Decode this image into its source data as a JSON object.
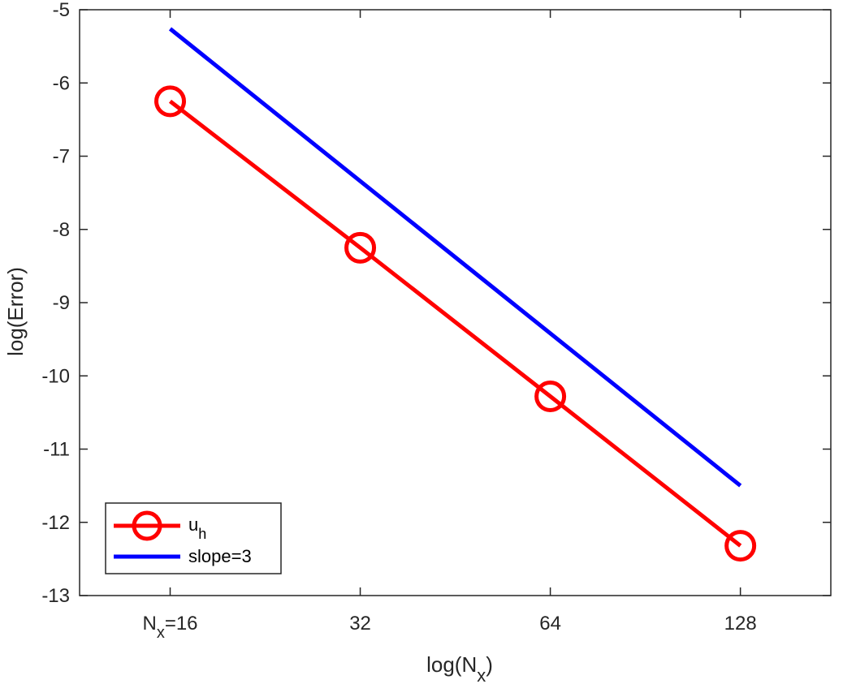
{
  "chart_data": {
    "type": "line",
    "title": "",
    "x_scale": "log2",
    "x_ticks": [
      {
        "value": 16,
        "label_main": "N",
        "label_sub": "x",
        "label_rest": "=16"
      },
      {
        "value": 32,
        "label_main": "32",
        "label_sub": "",
        "label_rest": ""
      },
      {
        "value": 64,
        "label_main": "64",
        "label_sub": "",
        "label_rest": ""
      },
      {
        "value": 128,
        "label_main": "128",
        "label_sub": "",
        "label_rest": ""
      }
    ],
    "xlim": [
      11.5,
      178
    ],
    "ylim": [
      -13,
      -5
    ],
    "y_ticks": [
      "-5",
      "-6",
      "-7",
      "-8",
      "-9",
      "-10",
      "-11",
      "-12",
      "-13"
    ],
    "y_tick_values": [
      -5,
      -6,
      -7,
      -8,
      -9,
      -10,
      -11,
      -12,
      -13
    ],
    "xlabel": {
      "main": "log(N",
      "sub": "x",
      "rest": ")"
    },
    "ylabel": "log(Error)",
    "grid": false,
    "legend_position": "bottom-left",
    "series": [
      {
        "name": "u",
        "name_sub": "h",
        "color": "#ff0000",
        "marker": "circle",
        "x": [
          16,
          32,
          64,
          128
        ],
        "y": [
          -6.25,
          -8.25,
          -10.28,
          -12.32
        ]
      },
      {
        "name": "slope=3",
        "name_sub": "",
        "color": "#0000ff",
        "marker": "none",
        "x": [
          16,
          128
        ],
        "y": [
          -5.26,
          -11.5
        ]
      }
    ]
  }
}
